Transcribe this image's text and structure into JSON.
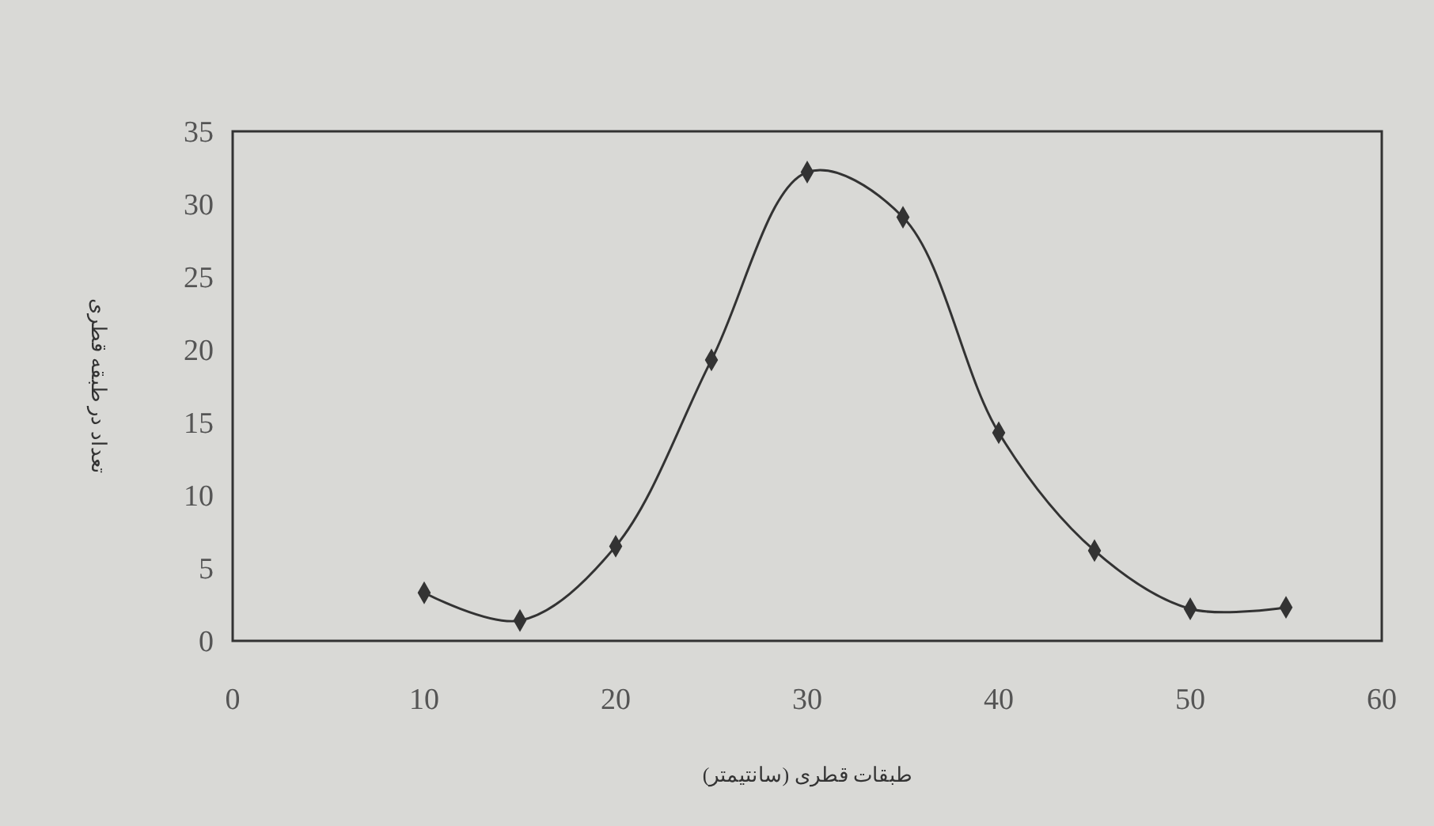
{
  "chart_data": {
    "type": "line",
    "xlabel": "طبقات قطری (سانتیمتر)",
    "ylabel": "تعداد در طبقه قطری",
    "x": [
      10,
      15,
      20,
      25,
      30,
      35,
      40,
      45,
      50,
      55
    ],
    "series": [
      {
        "color": "#333333",
        "values": [
          3.3,
          1.4,
          6.5,
          19.3,
          32.2,
          29.1,
          14.3,
          6.2,
          2.2,
          2.3
        ]
      }
    ],
    "xlim": [
      0,
      60
    ],
    "xticks": [
      0,
      10,
      20,
      30,
      40,
      50,
      60
    ],
    "ylim": [
      0,
      35
    ],
    "yticks": [
      0,
      5,
      10,
      15,
      20,
      25,
      30,
      35
    ],
    "marker": "diamond",
    "line_style": "solid",
    "grid": false
  }
}
